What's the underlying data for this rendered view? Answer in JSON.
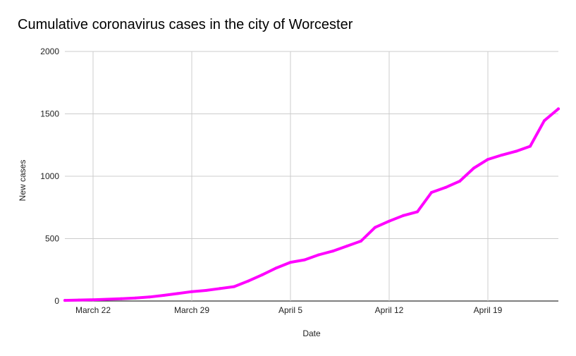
{
  "chart_data": {
    "type": "line",
    "title": "Cumulative coronavirus cases in the city of Worcester",
    "xlabel": "Date",
    "ylabel": "New cases",
    "ylim": [
      0,
      2000
    ],
    "y_ticks": [
      "0",
      "500",
      "1000",
      "1500",
      "2000"
    ],
    "x_ticks": [
      {
        "label": "March 22",
        "date": "2020-03-22"
      },
      {
        "label": "March 29",
        "date": "2020-03-29"
      },
      {
        "label": "April 5",
        "date": "2020-04-05"
      },
      {
        "label": "April 12",
        "date": "2020-04-12"
      },
      {
        "label": "April 19",
        "date": "2020-04-19"
      }
    ],
    "x": [
      "2020-03-20",
      "2020-03-21",
      "2020-03-22",
      "2020-03-23",
      "2020-03-24",
      "2020-03-25",
      "2020-03-26",
      "2020-03-27",
      "2020-03-28",
      "2020-03-29",
      "2020-03-30",
      "2020-03-31",
      "2020-04-01",
      "2020-04-02",
      "2020-04-03",
      "2020-04-04",
      "2020-04-05",
      "2020-04-06",
      "2020-04-07",
      "2020-04-08",
      "2020-04-09",
      "2020-04-10",
      "2020-04-11",
      "2020-04-12",
      "2020-04-13",
      "2020-04-14",
      "2020-04-15",
      "2020-04-16",
      "2020-04-17",
      "2020-04-18",
      "2020-04-19",
      "2020-04-20",
      "2020-04-21",
      "2020-04-22",
      "2020-04-23",
      "2020-04-24"
    ],
    "series": [
      {
        "color": "#ff00ff",
        "values": [
          5,
          8,
          10,
          14,
          18,
          24,
          32,
          45,
          60,
          75,
          85,
          100,
          115,
          160,
          210,
          265,
          310,
          330,
          370,
          400,
          440,
          480,
          590,
          640,
          685,
          715,
          870,
          910,
          960,
          1065,
          1135,
          1170,
          1200,
          1240,
          1445,
          1540
        ]
      }
    ],
    "grid": true
  }
}
